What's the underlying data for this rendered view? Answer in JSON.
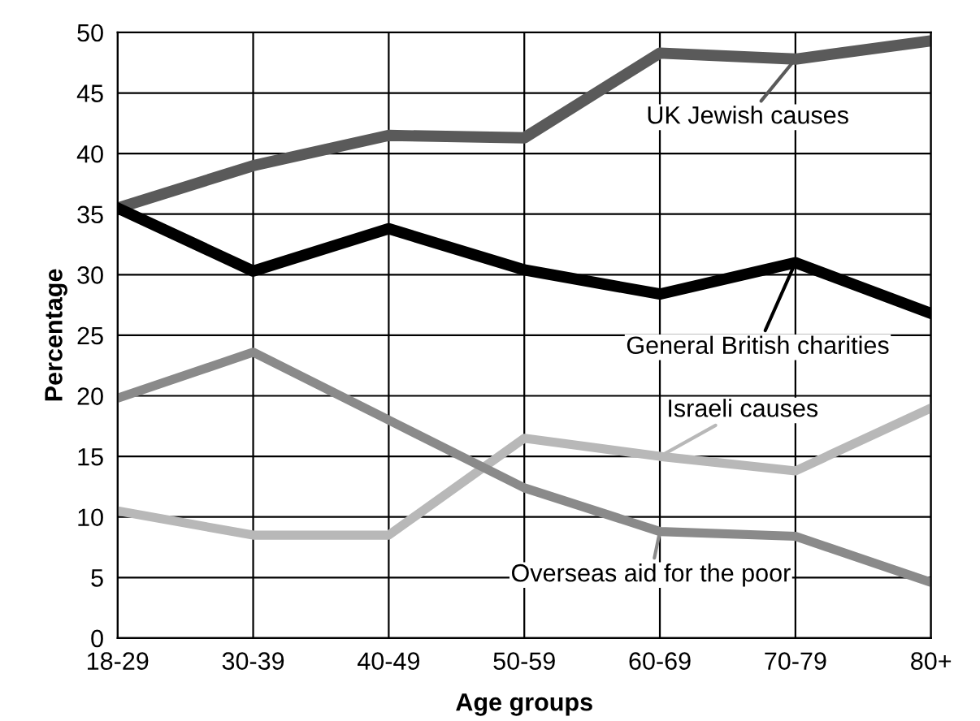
{
  "chart_data": {
    "type": "line",
    "xlabel": "Age groups",
    "ylabel": "Percentage",
    "categories": [
      "18-29",
      "30-39",
      "40-49",
      "50-59",
      "60-69",
      "70-79",
      "80+"
    ],
    "series": [
      {
        "name": "UK Jewish causes",
        "color": "#5a5a5a",
        "values": [
          35.5,
          39,
          41.5,
          41.3,
          48.3,
          47.8,
          49.3
        ]
      },
      {
        "name": "General British charities",
        "color": "#000000",
        "values": [
          35.5,
          30.3,
          33.8,
          30.4,
          28.4,
          31,
          26.8
        ]
      },
      {
        "name": "Israeli causes",
        "color": "#b8b8b8",
        "values": [
          10.5,
          8.5,
          8.5,
          16.5,
          15,
          13.8,
          19
        ]
      },
      {
        "name": "Overseas aid for the poor",
        "color": "#8a8a8a",
        "values": [
          19.8,
          23.6,
          18,
          12.4,
          8.8,
          8.4,
          4.6
        ]
      }
    ],
    "ylim": [
      0,
      50
    ],
    "yticks": [
      0,
      5,
      10,
      15,
      20,
      25,
      30,
      35,
      40,
      45,
      50
    ],
    "grid": true,
    "legend": "right",
    "marker": "none",
    "line_style": "solid"
  }
}
